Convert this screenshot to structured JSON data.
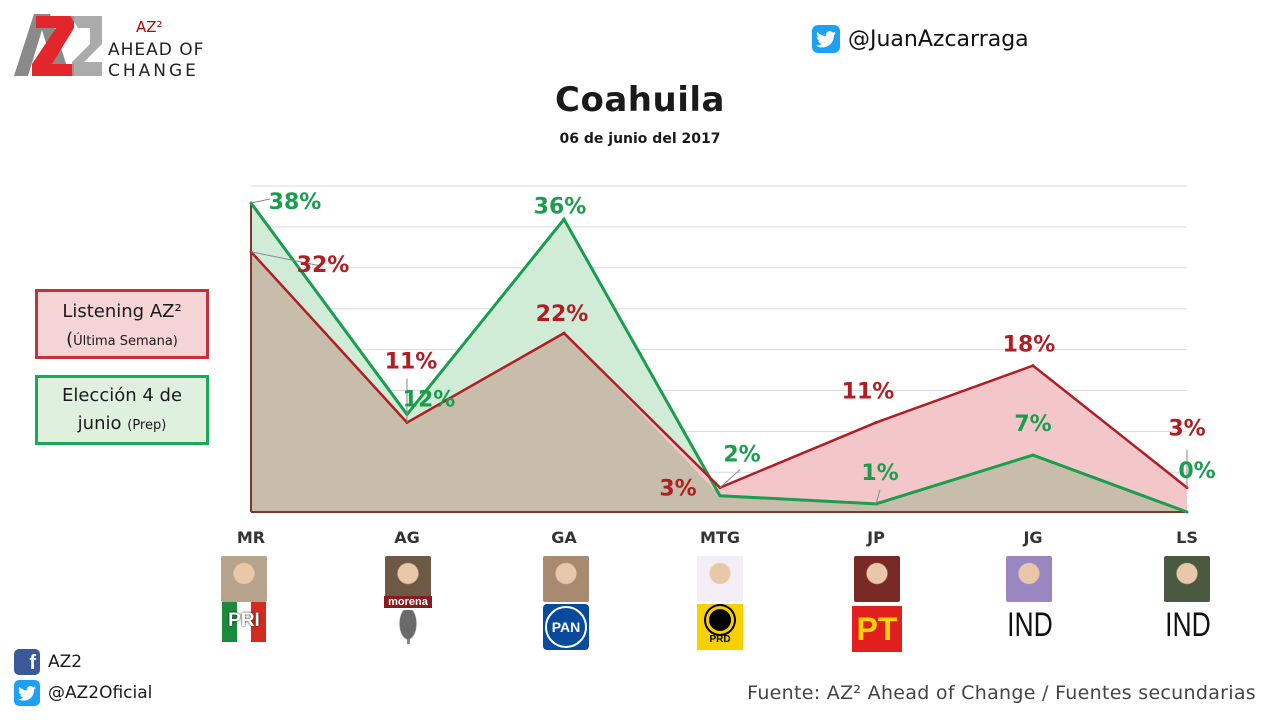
{
  "brand": {
    "logo_text": "AZ2",
    "superscript": "AZ²",
    "line1": "AHEAD OF",
    "line2": "CHANGE",
    "twitter_handle": "@JuanAzcarraga"
  },
  "header": {
    "title": "Coahuila",
    "subtitle": "06 de junio del 2017"
  },
  "legend": {
    "listening": {
      "main": "Listening AZ²",
      "paren_open": "(",
      "sub": "Última Semana)"
    },
    "election": {
      "main": "Elección 4 de",
      "line2": "junio",
      "sub": "(Prep)"
    }
  },
  "chart_data": {
    "type": "area",
    "categories": [
      "MR",
      "AG",
      "GA",
      "MTG",
      "JP",
      "JG",
      "LS"
    ],
    "series": [
      {
        "name": "Listening AZ² (Última Semana)",
        "values": [
          32,
          11,
          22,
          3,
          11,
          18,
          3
        ],
        "labels": [
          "32%",
          "11%",
          "22%",
          "3%",
          "11%",
          "18%",
          "3%"
        ],
        "color": "#b01e24",
        "fill": "#f2c4c6"
      },
      {
        "name": "Elección 4 de junio (Prep)",
        "values": [
          38,
          12,
          36,
          2,
          1,
          7,
          0
        ],
        "labels": [
          "38%",
          "12%",
          "36%",
          "2%",
          "1%",
          "7%",
          "0%"
        ],
        "color": "#1a9e4e",
        "fill": "#cdebd5"
      }
    ],
    "ylim": [
      0,
      38
    ],
    "grid": true,
    "legend_position": "left"
  },
  "candidates": [
    {
      "code": "MR",
      "party": "PRI",
      "photo_color": "#b8a48c"
    },
    {
      "code": "AG",
      "party": "morena",
      "photo_color": "#6e5a44"
    },
    {
      "code": "GA",
      "party": "PAN",
      "photo_color": "#a88a70"
    },
    {
      "code": "MTG",
      "party": "PRD",
      "photo_color": "#f3eef5"
    },
    {
      "code": "JP",
      "party": "PT",
      "photo_color": "#7a2a26"
    },
    {
      "code": "JG",
      "party": "IND",
      "photo_color": "#9a86c0"
    },
    {
      "code": "LS",
      "party": "IND",
      "photo_color": "#4a5a40"
    }
  ],
  "party_labels": {
    "pri": "PRI",
    "pan": "PAN",
    "prd": "PRD",
    "pt": "PT",
    "ind": "IND",
    "morena": "morena"
  },
  "footer": {
    "facebook": "AZ2",
    "twitter": "@AZ2Oficial",
    "source": "Fuente: AZ² Ahead of Change / Fuentes secundarias"
  },
  "colors": {
    "red": "#b01e24",
    "green": "#1a9e4e",
    "overlap": "#c8bdaa"
  }
}
